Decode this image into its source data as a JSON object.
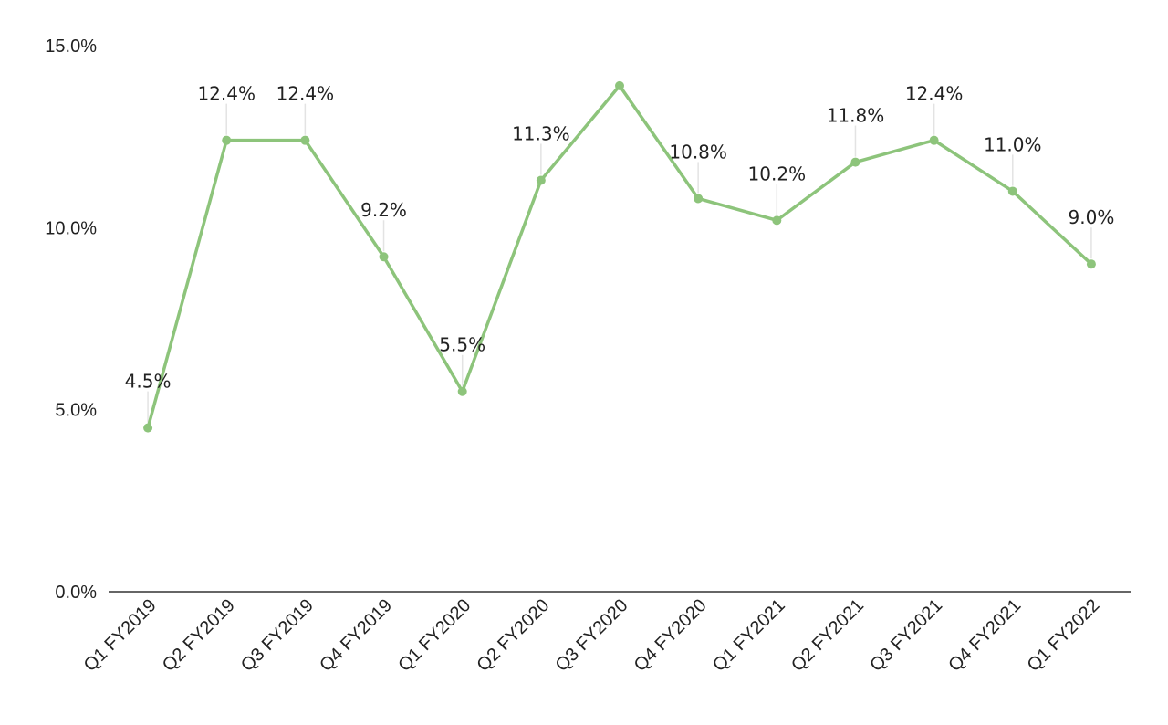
{
  "chart_data": {
    "type": "line",
    "title": "",
    "xlabel": "",
    "ylabel": "",
    "ylim": [
      0,
      15
    ],
    "y_ticks": [
      "0.0%",
      "5.0%",
      "10.0%",
      "15.0%"
    ],
    "y_tick_values": [
      0,
      5,
      10,
      15
    ],
    "grid": false,
    "legend": null,
    "categories": [
      "Q1 FY2019",
      "Q2 FY2019",
      "Q3 FY2019",
      "Q4 FY2019",
      "Q1 FY2020",
      "Q2 FY2020",
      "Q3 FY2020",
      "Q4 FY2020",
      "Q1 FY2021",
      "Q2 FY2021",
      "Q3 FY2021",
      "Q4 FY2021",
      "Q1 FY2022"
    ],
    "series": [
      {
        "name": "Value",
        "color": "#8dc47b",
        "values": [
          4.5,
          12.4,
          12.4,
          9.2,
          5.5,
          11.3,
          13.9,
          10.8,
          10.2,
          11.8,
          12.4,
          11.0,
          9.0
        ],
        "data_labels": [
          "4.5%",
          "12.4%",
          "12.4%",
          "9.2%",
          "5.5%",
          "11.3%",
          "",
          "10.8%",
          "10.2%",
          "11.8%",
          "12.4%",
          "11.0%",
          "9.0%"
        ]
      }
    ]
  }
}
